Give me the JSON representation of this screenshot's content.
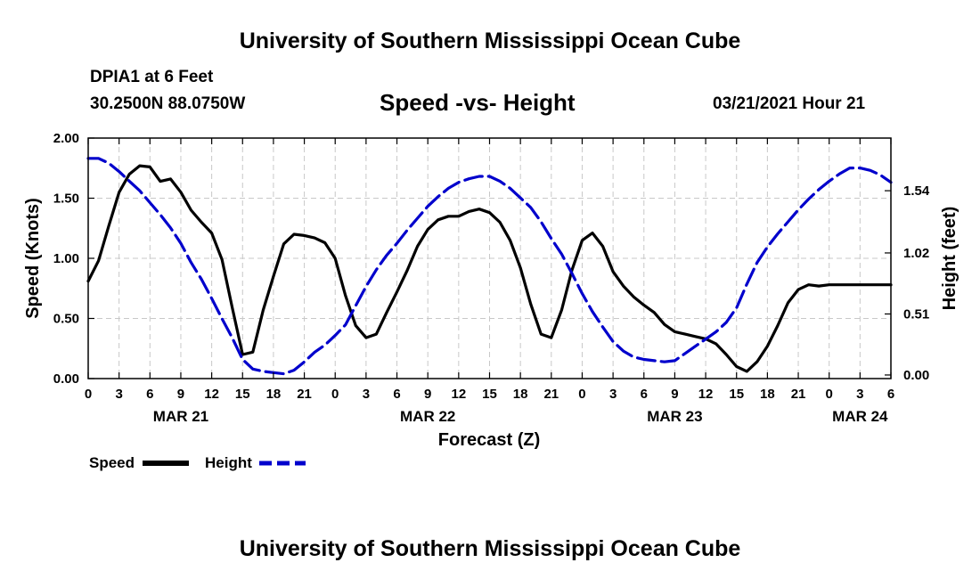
{
  "header": {
    "top_title": "University of Southern Mississippi Ocean Cube",
    "bottom_title": "University of Southern Mississippi Ocean Cube",
    "station": "DPIA1 at 6 Feet",
    "coords": "30.2500N 88.0750W",
    "datetime": "03/21/2021 Hour 21"
  },
  "chart_data": {
    "type": "line",
    "title": "Speed -vs- Height",
    "xlabel": "Forecast (Z)",
    "ylabel": "Speed (Knots)",
    "y2label": "Height (feet)",
    "x_range_hours": [
      0,
      78
    ],
    "ylim": [
      0,
      2.0
    ],
    "y2lim": [
      -0.03,
      1.98
    ],
    "y_ticks": [
      0,
      0.5,
      1.0,
      1.5,
      2.0
    ],
    "y_tick_labels": [
      "0.00",
      "0.50",
      "1.00",
      "1.50",
      "2.00"
    ],
    "y2_ticks": [
      0,
      0.51,
      1.02,
      1.54
    ],
    "y2_tick_labels": [
      "0.00",
      "0.51",
      "1.02",
      "1.54"
    ],
    "x_ticks": [
      0,
      3,
      6,
      9,
      12,
      15,
      18,
      21,
      24,
      27,
      30,
      33,
      36,
      39,
      42,
      45,
      48,
      51,
      54,
      57,
      60,
      63,
      66,
      69,
      72,
      75,
      78
    ],
    "x_tick_labels": [
      "0",
      "3",
      "6",
      "9",
      "12",
      "15",
      "18",
      "21",
      "0",
      "3",
      "6",
      "9",
      "12",
      "15",
      "18",
      "21",
      "0",
      "3",
      "6",
      "9",
      "12",
      "15",
      "18",
      "21",
      "0",
      "3",
      "6"
    ],
    "date_labels": [
      {
        "x": 9,
        "label": "MAR 21"
      },
      {
        "x": 33,
        "label": "MAR 22"
      },
      {
        "x": 57,
        "label": "MAR 23"
      },
      {
        "x": 75,
        "label": "MAR 24"
      }
    ],
    "grid": true,
    "series": [
      {
        "name": "Speed",
        "color": "#000000",
        "dash": "solid",
        "axis": "left",
        "x": [
          0,
          1,
          2,
          3,
          4,
          5,
          6,
          7,
          8,
          9,
          10,
          11,
          12,
          13,
          14,
          15,
          16,
          17,
          18,
          19,
          20,
          21,
          22,
          23,
          24,
          25,
          26,
          27,
          28,
          29,
          30,
          31,
          32,
          33,
          34,
          35,
          36,
          37,
          38,
          39,
          40,
          41,
          42,
          43,
          44,
          45,
          46,
          47,
          48,
          49,
          50,
          51,
          52,
          53,
          54,
          55,
          56,
          57,
          58,
          59,
          60,
          61,
          62,
          63,
          64,
          65,
          66,
          67,
          68,
          69,
          70,
          71,
          72,
          73,
          74,
          75,
          76,
          77,
          78
        ],
        "values": [
          0.81,
          0.98,
          1.27,
          1.55,
          1.7,
          1.77,
          1.76,
          1.64,
          1.66,
          1.55,
          1.4,
          1.3,
          1.21,
          0.99,
          0.59,
          0.2,
          0.22,
          0.57,
          0.85,
          1.12,
          1.2,
          1.19,
          1.17,
          1.13,
          1.0,
          0.69,
          0.44,
          0.34,
          0.37,
          0.55,
          0.72,
          0.9,
          1.1,
          1.24,
          1.32,
          1.35,
          1.35,
          1.39,
          1.41,
          1.38,
          1.3,
          1.15,
          0.92,
          0.62,
          0.37,
          0.34,
          0.57,
          0.9,
          1.15,
          1.21,
          1.1,
          0.89,
          0.77,
          0.68,
          0.61,
          0.55,
          0.45,
          0.39,
          0.37,
          0.35,
          0.33,
          0.29,
          0.2,
          0.1,
          0.06,
          0.14,
          0.27,
          0.44,
          0.63,
          0.74,
          0.78,
          0.77,
          0.78,
          0.78,
          0.78,
          0.78,
          0.78,
          0.78,
          0.78
        ]
      },
      {
        "name": "Height",
        "color": "#0000cc",
        "dash": "dashed",
        "axis": "right",
        "x": [
          0,
          1,
          2,
          3,
          4,
          5,
          6,
          7,
          8,
          9,
          10,
          11,
          12,
          13,
          14,
          15,
          16,
          17,
          18,
          19,
          20,
          21,
          22,
          23,
          24,
          25,
          26,
          27,
          28,
          29,
          30,
          31,
          32,
          33,
          34,
          35,
          36,
          37,
          38,
          39,
          40,
          41,
          42,
          43,
          44,
          45,
          46,
          47,
          48,
          49,
          50,
          51,
          52,
          53,
          54,
          55,
          56,
          57,
          58,
          59,
          60,
          61,
          62,
          63,
          64,
          65,
          66,
          67,
          68,
          69,
          70,
          71,
          72,
          73,
          74,
          75,
          76,
          77,
          78
        ],
        "values": [
          1.81,
          1.81,
          1.77,
          1.7,
          1.62,
          1.54,
          1.44,
          1.34,
          1.23,
          1.1,
          0.94,
          0.8,
          0.64,
          0.47,
          0.31,
          0.13,
          0.05,
          0.03,
          0.02,
          0.01,
          0.04,
          0.11,
          0.19,
          0.25,
          0.33,
          0.42,
          0.58,
          0.74,
          0.88,
          1.0,
          1.1,
          1.21,
          1.31,
          1.41,
          1.49,
          1.56,
          1.61,
          1.64,
          1.66,
          1.66,
          1.62,
          1.56,
          1.48,
          1.4,
          1.28,
          1.14,
          1.01,
          0.85,
          0.68,
          0.53,
          0.4,
          0.28,
          0.2,
          0.15,
          0.13,
          0.12,
          0.11,
          0.12,
          0.18,
          0.24,
          0.3,
          0.36,
          0.44,
          0.56,
          0.76,
          0.94,
          1.07,
          1.18,
          1.28,
          1.38,
          1.47,
          1.55,
          1.62,
          1.68,
          1.73,
          1.73,
          1.71,
          1.67,
          1.61
        ]
      }
    ]
  }
}
